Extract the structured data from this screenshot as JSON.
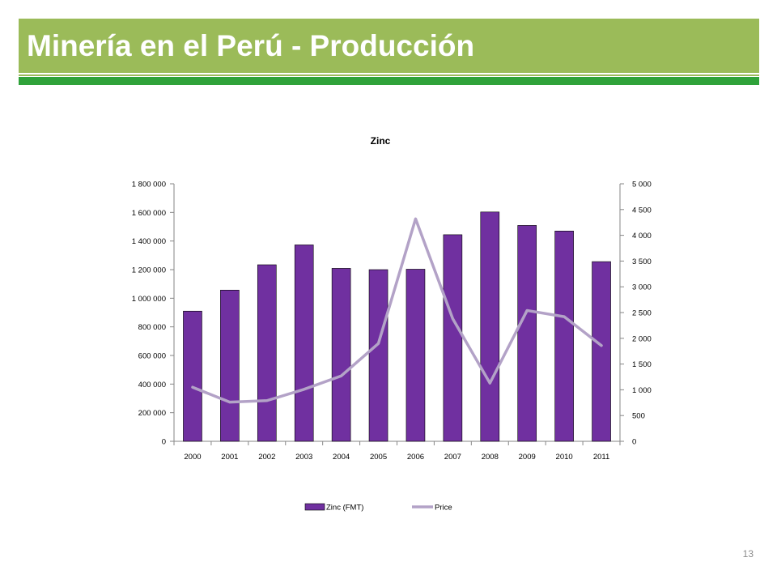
{
  "slide": {
    "title": "Minería en el Perú - Producción",
    "page_number": "13"
  },
  "colors": {
    "title_bar": "#9bbb59",
    "accent_line": "#2fa23a",
    "bar": "#7030a0",
    "line": "#b3a2c7"
  },
  "chart_data": {
    "type": "bar",
    "title": "Zinc",
    "categories": [
      "2000",
      "2001",
      "2002",
      "2003",
      "2004",
      "2005",
      "2006",
      "2007",
      "2008",
      "2009",
      "2010",
      "2011"
    ],
    "series": [
      {
        "name": "Zinc (FMT)",
        "type": "bar",
        "axis": "left",
        "values": [
          910000,
          1057000,
          1234000,
          1373000,
          1209000,
          1200000,
          1203000,
          1444000,
          1603000,
          1509000,
          1470000,
          1256000
        ]
      },
      {
        "name": "Price",
        "type": "line",
        "axis": "right",
        "values": [
          1050,
          760,
          790,
          1010,
          1270,
          1900,
          4320,
          2380,
          1130,
          2540,
          2420,
          1860
        ]
      }
    ],
    "y_left": {
      "min": 0,
      "max": 1800000,
      "ticks": [
        "0",
        "200 000",
        "400 000",
        "600 000",
        "800 000",
        "1 000 000",
        "1 200 000",
        "1 400 000",
        "1 600 000",
        "1 800 000"
      ]
    },
    "y_right": {
      "min": 0,
      "max": 5000,
      "ticks": [
        "0",
        "500",
        "1 000",
        "1 500",
        "2 000",
        "2 500",
        "3 000",
        "3 500",
        "4 000",
        "4 500",
        "5 000"
      ]
    },
    "grid": false,
    "legend_position": "bottom"
  }
}
